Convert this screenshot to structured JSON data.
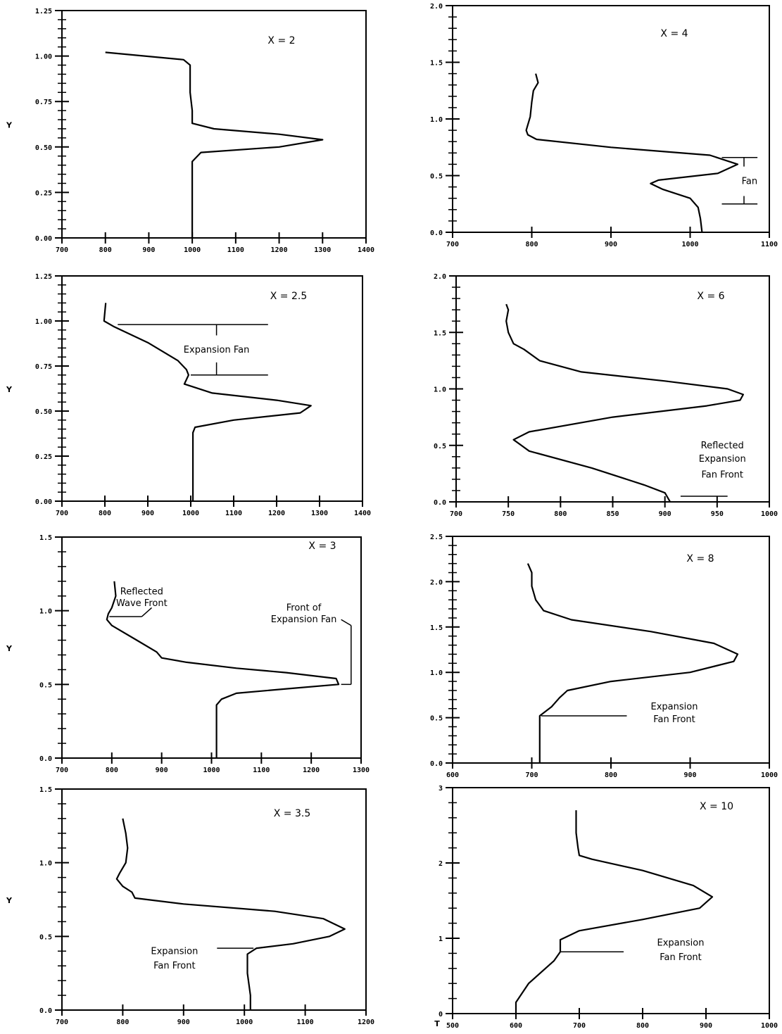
{
  "chart_data": [
    {
      "type": "line",
      "title": "X = 2",
      "ylabel": "Y",
      "xlim": [
        700,
        1400
      ],
      "ylim": [
        0,
        1.25
      ],
      "xticks": [
        "700",
        "800",
        "900",
        "1000",
        "1100",
        "1200",
        "1300",
        "1400"
      ],
      "yticks": [
        "0.00",
        "0.25",
        "0.50",
        "0.75",
        "1.00",
        "1.25"
      ],
      "series": [
        {
          "x": [
            800,
            980,
            995,
            995,
            1000,
            1000,
            1050,
            1200,
            1300,
            1200,
            1020,
            1000,
            1000,
            1000
          ],
          "y": [
            1.02,
            0.98,
            0.95,
            0.8,
            0.7,
            0.63,
            0.6,
            0.57,
            0.54,
            0.5,
            0.47,
            0.42,
            0.2,
            0.0
          ]
        }
      ],
      "annotations": []
    },
    {
      "type": "line",
      "title": "X = 4",
      "ylabel": "",
      "xlim": [
        700,
        1100
      ],
      "ylim": [
        0,
        2.0
      ],
      "xticks": [
        "700",
        "800",
        "900",
        "1000",
        "1100"
      ],
      "yticks": [
        "0.0",
        "0.5",
        "1.0",
        "1.5",
        "2.0"
      ],
      "series": [
        {
          "x": [
            805,
            808,
            802,
            800,
            798,
            793,
            795,
            806,
            900,
            1025,
            1060,
            1035,
            960,
            950,
            965,
            1000,
            1010,
            1013,
            1015
          ],
          "y": [
            1.4,
            1.32,
            1.25,
            1.15,
            1.02,
            0.9,
            0.86,
            0.82,
            0.75,
            0.68,
            0.6,
            0.52,
            0.46,
            0.43,
            0.38,
            0.3,
            0.22,
            0.12,
            0.0
          ]
        }
      ],
      "annotations": [
        {
          "text": "Fan",
          "x": 1075,
          "y": 0.45
        }
      ]
    },
    {
      "type": "line",
      "title": "X = 2.5",
      "ylabel": "Y",
      "xlim": [
        700,
        1400
      ],
      "ylim": [
        0,
        1.25
      ],
      "xticks": [
        "700",
        "800",
        "900",
        "1000",
        "1100",
        "1200",
        "1300",
        "1400"
      ],
      "yticks": [
        "0.00",
        "0.25",
        "0.50",
        "0.75",
        "1.00",
        "1.25"
      ],
      "series": [
        {
          "x": [
            802,
            798,
            820,
            900,
            970,
            990,
            995,
            985,
            1050,
            1200,
            1280,
            1255,
            1100,
            1010,
            1005,
            1005,
            1005
          ],
          "y": [
            1.1,
            1.0,
            0.97,
            0.88,
            0.78,
            0.73,
            0.7,
            0.65,
            0.6,
            0.56,
            0.53,
            0.49,
            0.45,
            0.41,
            0.38,
            0.2,
            0.0
          ]
        }
      ],
      "annotations": [
        {
          "text": "Expansion Fan",
          "x": 1060,
          "y": 0.84
        }
      ]
    },
    {
      "type": "line",
      "title": "X = 6",
      "ylabel": "",
      "xlim": [
        700,
        1000
      ],
      "ylim": [
        0,
        2.0
      ],
      "xticks": [
        "700",
        "750",
        "800",
        "850",
        "900",
        "950",
        "1000"
      ],
      "yticks": [
        "0.0",
        "0.5",
        "1.0",
        "1.5",
        "2.0"
      ],
      "series": [
        {
          "x": [
            748,
            750,
            748,
            750,
            755,
            765,
            780,
            820,
            900,
            960,
            975,
            972,
            940,
            850,
            770,
            755,
            770,
            830,
            880,
            900,
            905
          ],
          "y": [
            1.75,
            1.7,
            1.6,
            1.5,
            1.4,
            1.35,
            1.25,
            1.15,
            1.07,
            1.0,
            0.95,
            0.9,
            0.85,
            0.75,
            0.62,
            0.55,
            0.45,
            0.3,
            0.15,
            0.08,
            0.0
          ]
        }
      ],
      "annotations": [
        {
          "text": "Reflected",
          "x": 955,
          "y": 0.5
        },
        {
          "text": "Expansion",
          "x": 955,
          "y": 0.38
        },
        {
          "text": "Fan Front",
          "x": 955,
          "y": 0.24
        }
      ]
    },
    {
      "type": "line",
      "title": "X = 3",
      "ylabel": "Y",
      "xlim": [
        700,
        1300
      ],
      "ylim": [
        0,
        1.5
      ],
      "xticks": [
        "700",
        "800",
        "900",
        "1000",
        "1100",
        "1200",
        "1300"
      ],
      "yticks": [
        "0.0",
        "0.5",
        "1.0",
        "1.5"
      ],
      "series": [
        {
          "x": [
            805,
            808,
            800,
            793,
            790,
            800,
            850,
            890,
            900,
            950,
            1050,
            1150,
            1250,
            1255,
            1150,
            1050,
            1020,
            1010,
            1010,
            1010
          ],
          "y": [
            1.2,
            1.1,
            1.02,
            0.98,
            0.94,
            0.9,
            0.8,
            0.72,
            0.68,
            0.65,
            0.61,
            0.58,
            0.54,
            0.5,
            0.47,
            0.44,
            0.4,
            0.36,
            0.2,
            0.0
          ]
        }
      ],
      "annotations": [
        {
          "text": "Reflected",
          "x": 860,
          "y": 1.13
        },
        {
          "text": "Wave Front",
          "x": 860,
          "y": 1.05
        },
        {
          "text": "Front of",
          "x": 1185,
          "y": 1.02
        },
        {
          "text": "Expansion Fan",
          "x": 1185,
          "y": 0.94
        }
      ]
    },
    {
      "type": "line",
      "title": "X = 8",
      "ylabel": "",
      "xlim": [
        600,
        1000
      ],
      "ylim": [
        0,
        2.5
      ],
      "xticks": [
        "600",
        "700",
        "800",
        "900",
        "1000"
      ],
      "yticks": [
        "0.0",
        "0.5",
        "1.0",
        "1.5",
        "2.0",
        "2.5"
      ],
      "series": [
        {
          "x": [
            695,
            700,
            700,
            705,
            715,
            750,
            850,
            930,
            960,
            955,
            900,
            800,
            745,
            735,
            725,
            710,
            710,
            710
          ],
          "y": [
            2.2,
            2.1,
            1.95,
            1.8,
            1.68,
            1.58,
            1.45,
            1.32,
            1.2,
            1.12,
            1.0,
            0.9,
            0.8,
            0.72,
            0.62,
            0.52,
            0.3,
            0.0
          ]
        }
      ],
      "annotations": [
        {
          "text": "Expansion",
          "x": 880,
          "y": 0.62
        },
        {
          "text": "Fan Front",
          "x": 880,
          "y": 0.48
        }
      ]
    },
    {
      "type": "line",
      "title": "X = 3.5",
      "ylabel": "Y",
      "xlim": [
        700,
        1200
      ],
      "ylim": [
        0,
        1.5
      ],
      "xticks": [
        "700",
        "800",
        "900",
        "1000",
        "1100",
        "1200"
      ],
      "yticks": [
        "0.0",
        "0.5",
        "1.0",
        "1.5"
      ],
      "series": [
        {
          "x": [
            800,
            805,
            808,
            805,
            795,
            790,
            800,
            815,
            820,
            900,
            1050,
            1130,
            1165,
            1140,
            1080,
            1020,
            1005,
            1005,
            1010,
            1010
          ],
          "y": [
            1.3,
            1.2,
            1.1,
            1.0,
            0.93,
            0.89,
            0.84,
            0.8,
            0.76,
            0.72,
            0.67,
            0.62,
            0.55,
            0.5,
            0.45,
            0.42,
            0.38,
            0.25,
            0.1,
            0.0
          ]
        }
      ],
      "annotations": [
        {
          "text": "Expansion",
          "x": 885,
          "y": 0.4
        },
        {
          "text": "Fan Front",
          "x": 885,
          "y": 0.3
        }
      ]
    },
    {
      "type": "line",
      "title": "X = 10",
      "ylabel": "",
      "xlabel": "T",
      "xlim": [
        500,
        1000
      ],
      "ylim": [
        0,
        3
      ],
      "xticks": [
        "500",
        "600",
        "700",
        "800",
        "900",
        "1000"
      ],
      "yticks": [
        "0",
        "1",
        "2",
        "3"
      ],
      "series": [
        {
          "x": [
            695,
            695,
            698,
            700,
            720,
            800,
            880,
            910,
            890,
            800,
            700,
            680,
            670,
            670,
            660,
            620,
            600,
            600
          ],
          "y": [
            2.7,
            2.4,
            2.2,
            2.1,
            2.05,
            1.9,
            1.7,
            1.55,
            1.4,
            1.25,
            1.1,
            1.02,
            0.98,
            0.82,
            0.7,
            0.4,
            0.15,
            0.0
          ]
        }
      ],
      "annotations": [
        {
          "text": "Expansion",
          "x": 860,
          "y": 0.94
        },
        {
          "text": "Fan Front",
          "x": 860,
          "y": 0.75
        }
      ]
    }
  ]
}
